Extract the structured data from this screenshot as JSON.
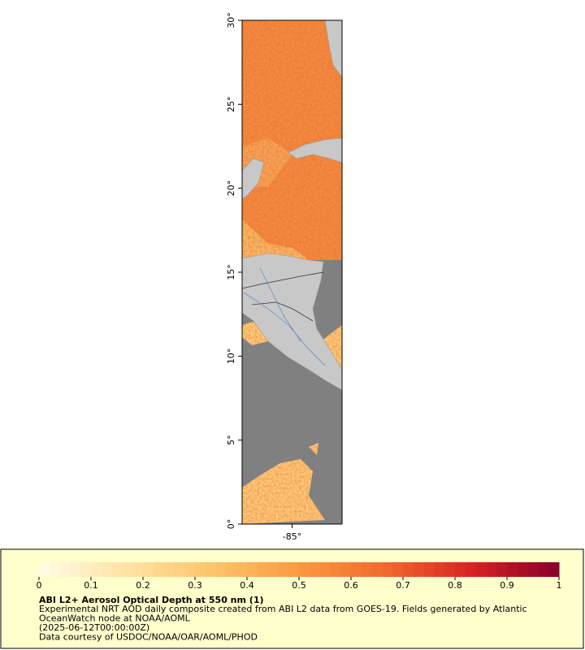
{
  "map": {
    "xlim": [
      -88,
      -82
    ],
    "ylim": [
      0,
      30
    ],
    "yticks": [
      {
        "value": 0,
        "label": "0°"
      },
      {
        "value": 5,
        "label": "5°"
      },
      {
        "value": 10,
        "label": "10°"
      },
      {
        "value": 15,
        "label": "15°"
      },
      {
        "value": 20,
        "label": "20°"
      },
      {
        "value": 25,
        "label": "25°"
      },
      {
        "value": 30,
        "label": "30°"
      }
    ],
    "xticks": [
      {
        "value": -85,
        "label": "-85°"
      }
    ]
  },
  "colorbar": {
    "range": [
      0,
      1
    ],
    "ticks": [
      0,
      0.1,
      0.2,
      0.3,
      0.4,
      0.5,
      0.6,
      0.7,
      0.8,
      0.9,
      1
    ],
    "colors": [
      "#fffbe6",
      "#ffe3a6",
      "#fdc46a",
      "#fa9a42",
      "#ef6a2c",
      "#d82222",
      "#86002a"
    ]
  },
  "caption": {
    "title": "ABI L2+ Aerosol Optical Depth at 550 nm (1)",
    "lines": [
      "Experimental NRT AOD daily composite created from ABI L2 data from GOES-19. Fields generated by Atlantic",
      "OceanWatch node at NOAA/AOML",
      "(2025-06-12T00:00:00Z)",
      "Data courtesy of USDOC/NOAA/OAR/AOML/PHOD"
    ]
  }
}
